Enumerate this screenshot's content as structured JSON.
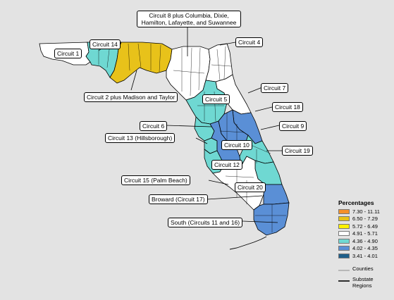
{
  "labels": {
    "circuit1": "Circuit 1",
    "circuit14": "Circuit 14",
    "circuit8": "Circuit 8 plus Columbia, Dixie, Hamilton, Lafayette, and Suwannee",
    "circuit4": "Circuit 4",
    "circuit2": "Circuit 2 plus Madison and Taylor",
    "circuit7": "Circuit 7",
    "circuit5": "Circuit 5",
    "circuit18": "Circuit 18",
    "circuit6": "Circuit 6",
    "circuit9": "Circuit 9",
    "circuit13": "Circuit 13 (Hillsborough)",
    "circuit10": "Circuit 10",
    "circuit19": "Circuit 19",
    "circuit12": "Circuit 12",
    "circuit15": "Circuit 15 (Palm Beach)",
    "circuit20": "Circuit 20",
    "circuit17": "Broward (Circuit 17)",
    "south": "South (Circuits 11 and 16)"
  },
  "legend": {
    "title": "Percentages",
    "classes": [
      {
        "range": "7.30 - 11.11",
        "color": "#f5902a"
      },
      {
        "range": "6.50 - 7.29",
        "color": "#e8c21a"
      },
      {
        "range": "5.72 - 6.49",
        "color": "#fff200"
      },
      {
        "range": "4.91 - 5.71",
        "color": "#ffffff"
      },
      {
        "range": "4.36 - 4.90",
        "color": "#6fd8d2"
      },
      {
        "range": "4.02 - 4.35",
        "color": "#5a8fd6"
      },
      {
        "range": "3.41 - 4.01",
        "color": "#1f5f8a"
      }
    ],
    "counties_label": "Counties",
    "substate_label": "Substate Regions"
  },
  "region_values": {
    "circuit1": "4.91 - 5.71",
    "circuit14": "4.36 - 4.90",
    "circuit2": "6.50 - 7.29",
    "circuit8": "4.91 - 5.71",
    "circuit4": "4.91 - 5.71",
    "circuit7": "4.91 - 5.71",
    "circuit5": "4.36 - 4.90",
    "circuit18": "4.02 - 4.35",
    "circuit6": "4.36 - 4.90",
    "circuit9": "4.02 - 4.35",
    "circuit13": "4.36 - 4.90",
    "circuit10": "4.02 - 4.35",
    "circuit19": "4.36 - 4.90",
    "circuit12": "4.36 - 4.90",
    "circuit15": "4.36 - 4.90",
    "circuit20": "4.91 - 5.71",
    "circuit17": "4.02 - 4.35",
    "south": "4.02 - 4.35"
  }
}
